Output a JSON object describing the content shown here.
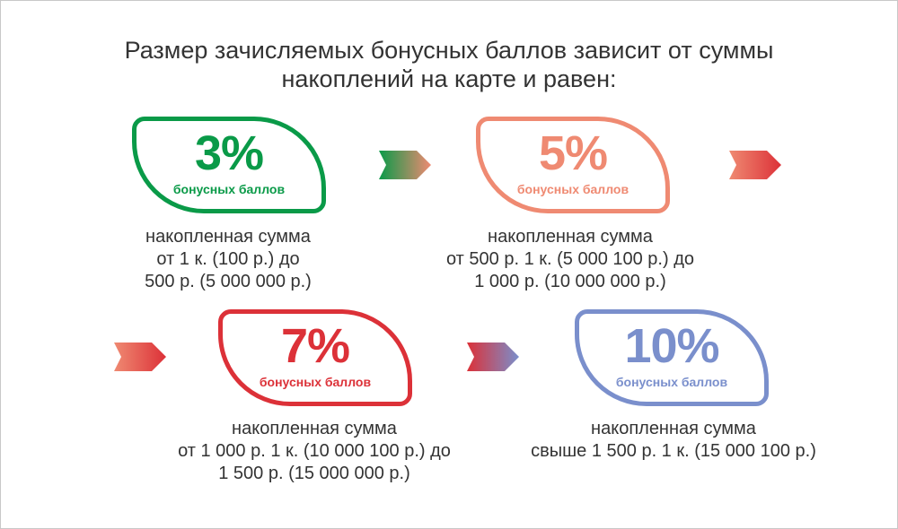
{
  "title": {
    "line1": "Размер зачисляемых бонусных баллов зависит от суммы",
    "line2": "накоплений на карте и равен:"
  },
  "cards": [
    {
      "percent": "3%",
      "label": "бонусных баллов",
      "color": "#0a9a48",
      "desc": [
        "накопленная сумма",
        "от 1 к. (100 р.) до",
        "500 р. (5 000 000 р.)"
      ]
    },
    {
      "percent": "5%",
      "label": "бонусных баллов",
      "color": "#ef8a72",
      "desc": [
        "накопленная сумма",
        "от 500 р. 1 к. (5 000 100 р.) до",
        "1 000 р. (10 000 000 р.)"
      ]
    },
    {
      "percent": "7%",
      "label": "бонусных баллов",
      "color": "#dc3138",
      "desc": [
        "накопленная сумма",
        "от 1 000 р. 1 к. (10 000 100 р.) до",
        "1 500 р. (15 000 000 р.)"
      ]
    },
    {
      "percent": "10%",
      "label": "бонусных баллов",
      "color": "#7a8fcc",
      "desc": [
        "накопленная сумма",
        "свыше 1 500 р. 1 к. (15 000 100 р.)"
      ]
    }
  ],
  "arrows": [
    {
      "name": "green-to-orange",
      "from": "#0a9a48",
      "to": "#ef8a72"
    },
    {
      "name": "orange-to-red",
      "from": "#ef8a72",
      "to": "#dc3138"
    },
    {
      "name": "orange-to-red-2",
      "from": "#ef8a72",
      "to": "#dc3138"
    },
    {
      "name": "red-to-blue",
      "from": "#dc3138",
      "to": "#7a8fcc"
    }
  ]
}
